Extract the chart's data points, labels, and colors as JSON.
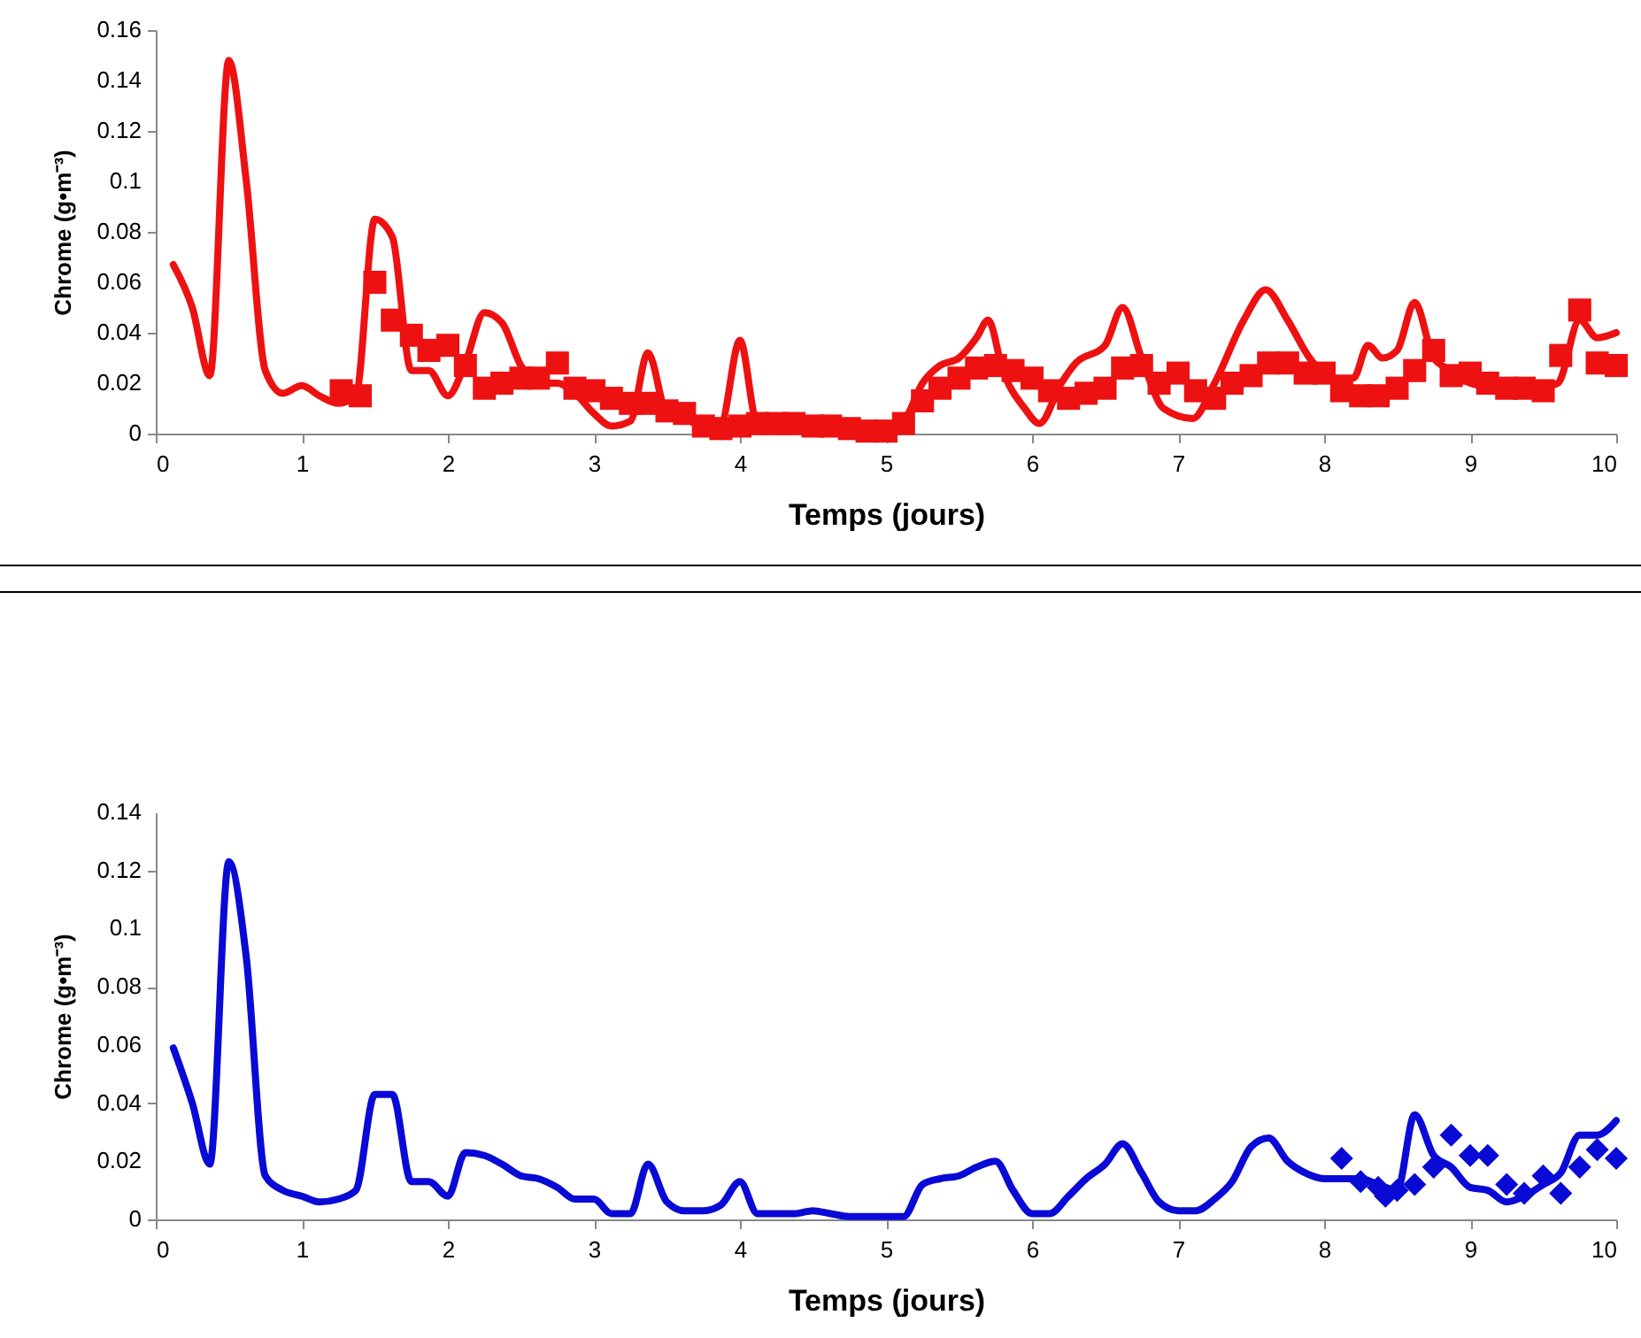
{
  "chart_data": [
    {
      "type": "line",
      "xlabel": "Temps (jours)",
      "ylabel": "Chrome (g•m⁻³)",
      "xlim": [
        0,
        10
      ],
      "xticks": [
        0,
        1,
        2,
        3,
        4,
        5,
        6,
        7,
        8,
        9,
        10
      ],
      "ylim": [
        0,
        0.16
      ],
      "yticks": [
        0,
        0.02,
        0.04,
        0.06,
        0.08,
        0.1,
        0.12,
        0.14,
        0.16
      ],
      "grid": false,
      "series": [
        {
          "type": "line",
          "color": "#ee1111",
          "x": [
            0.12,
            0.25,
            0.37,
            0.5,
            0.62,
            0.75,
            0.87,
            1.0,
            1.12,
            1.25,
            1.37,
            1.5,
            1.62,
            1.75,
            1.87,
            2.0,
            2.12,
            2.25,
            2.37,
            2.5,
            2.62,
            2.75,
            2.87,
            3.0,
            3.12,
            3.25,
            3.37,
            3.5,
            3.62,
            3.75,
            3.87,
            4.0,
            4.12,
            4.25,
            4.5,
            4.75,
            5.0,
            5.12,
            5.25,
            5.37,
            5.5,
            5.62,
            5.7,
            5.8,
            5.95,
            6.05,
            6.2,
            6.3,
            6.5,
            6.62,
            6.75,
            6.9,
            7.1,
            7.25,
            7.45,
            7.6,
            7.75,
            7.9,
            8.05,
            8.2,
            8.3,
            8.4,
            8.5,
            8.62,
            8.75,
            8.87,
            9.0,
            9.2,
            9.4,
            9.6,
            9.75,
            9.87,
            10.0
          ],
          "values": [
            0.067,
            0.05,
            0.023,
            0.148,
            0.1,
            0.025,
            0.016,
            0.019,
            0.015,
            0.012,
            0.015,
            0.085,
            0.078,
            0.025,
            0.025,
            0.015,
            0.028,
            0.048,
            0.044,
            0.027,
            0.02,
            0.02,
            0.016,
            0.008,
            0.003,
            0.005,
            0.032,
            0.008,
            0.006,
            0.003,
            0.004,
            0.037,
            0.004,
            0.004,
            0.004,
            0.003,
            0.002,
            0.005,
            0.02,
            0.027,
            0.03,
            0.038,
            0.045,
            0.025,
            0.01,
            0.004,
            0.02,
            0.028,
            0.035,
            0.05,
            0.03,
            0.01,
            0.006,
            0.02,
            0.045,
            0.057,
            0.045,
            0.03,
            0.022,
            0.022,
            0.035,
            0.03,
            0.033,
            0.052,
            0.03,
            0.025,
            0.02,
            0.018,
            0.017,
            0.02,
            0.045,
            0.038,
            0.04
          ]
        },
        {
          "type": "scatter",
          "marker": "square",
          "color": "#ee1111",
          "x": [
            1.27,
            1.4,
            1.5,
            1.62,
            1.75,
            1.87,
            2.0,
            2.12,
            2.25,
            2.37,
            2.5,
            2.62,
            2.75,
            2.87,
            3.0,
            3.12,
            3.25,
            3.37,
            3.5,
            3.62,
            3.75,
            3.87,
            4.0,
            4.12,
            4.25,
            4.37,
            4.5,
            4.62,
            4.75,
            4.87,
            5.0,
            5.12,
            5.25,
            5.37,
            5.5,
            5.62,
            5.75,
            5.87,
            6.0,
            6.12,
            6.25,
            6.37,
            6.5,
            6.62,
            6.75,
            6.87,
            7.0,
            7.12,
            7.25,
            7.37,
            7.5,
            7.62,
            7.75,
            7.87,
            8.0,
            8.12,
            8.25,
            8.37,
            8.5,
            8.62,
            8.75,
            8.87,
            9.0,
            9.12,
            9.25,
            9.37,
            9.5,
            9.62,
            9.75,
            9.87,
            10.0
          ],
          "values": [
            0.017,
            0.015,
            0.06,
            0.045,
            0.039,
            0.033,
            0.035,
            0.027,
            0.018,
            0.02,
            0.022,
            0.022,
            0.028,
            0.018,
            0.017,
            0.014,
            0.012,
            0.012,
            0.009,
            0.008,
            0.003,
            0.002,
            0.003,
            0.004,
            0.004,
            0.004,
            0.003,
            0.003,
            0.002,
            0.001,
            0.001,
            0.004,
            0.013,
            0.018,
            0.022,
            0.026,
            0.027,
            0.025,
            0.022,
            0.017,
            0.014,
            0.016,
            0.018,
            0.026,
            0.027,
            0.02,
            0.024,
            0.017,
            0.014,
            0.02,
            0.023,
            0.028,
            0.028,
            0.024,
            0.024,
            0.017,
            0.015,
            0.015,
            0.018,
            0.025,
            0.033,
            0.023,
            0.024,
            0.02,
            0.018,
            0.018,
            0.017,
            0.031,
            0.049,
            0.028,
            0.027
          ]
        }
      ]
    },
    {
      "type": "line",
      "xlabel": "Temps (jours)",
      "ylabel": "Chrome (g•m⁻³)",
      "xlim": [
        0,
        10
      ],
      "xticks": [
        0,
        1,
        2,
        3,
        4,
        5,
        6,
        7,
        8,
        9,
        10
      ],
      "ylim": [
        0,
        0.14
      ],
      "yticks": [
        0,
        0.02,
        0.04,
        0.06,
        0.08,
        0.1,
        0.12,
        0.14
      ],
      "grid": false,
      "series": [
        {
          "type": "line",
          "color": "#0a0ad6",
          "x": [
            0.12,
            0.25,
            0.37,
            0.5,
            0.62,
            0.75,
            0.87,
            1.0,
            1.12,
            1.25,
            1.37,
            1.5,
            1.62,
            1.75,
            1.87,
            2.0,
            2.12,
            2.25,
            2.37,
            2.5,
            2.62,
            2.75,
            2.87,
            3.0,
            3.12,
            3.25,
            3.37,
            3.5,
            3.62,
            3.75,
            3.87,
            4.0,
            4.12,
            4.25,
            4.37,
            4.5,
            4.62,
            4.75,
            5.0,
            5.12,
            5.25,
            5.37,
            5.5,
            5.62,
            5.75,
            5.87,
            6.0,
            6.12,
            6.25,
            6.37,
            6.5,
            6.62,
            6.75,
            6.87,
            7.0,
            7.12,
            7.25,
            7.37,
            7.5,
            7.62,
            7.75,
            7.87,
            8.0,
            8.12,
            8.25,
            8.37,
            8.5,
            8.62,
            8.75,
            8.87,
            9.0,
            9.12,
            9.25,
            9.37,
            9.5,
            9.62,
            9.75,
            9.87,
            10.0
          ],
          "values": [
            0.059,
            0.04,
            0.019,
            0.123,
            0.09,
            0.015,
            0.01,
            0.008,
            0.006,
            0.007,
            0.01,
            0.043,
            0.043,
            0.013,
            0.013,
            0.008,
            0.023,
            0.022,
            0.019,
            0.015,
            0.014,
            0.011,
            0.007,
            0.007,
            0.002,
            0.002,
            0.019,
            0.006,
            0.003,
            0.003,
            0.005,
            0.013,
            0.002,
            0.002,
            0.002,
            0.003,
            0.002,
            0.001,
            0.001,
            0.001,
            0.012,
            0.014,
            0.015,
            0.018,
            0.02,
            0.01,
            0.002,
            0.002,
            0.008,
            0.014,
            0.019,
            0.026,
            0.016,
            0.006,
            0.003,
            0.003,
            0.007,
            0.013,
            0.025,
            0.028,
            0.02,
            0.016,
            0.014,
            0.014,
            0.014,
            0.012,
            0.01,
            0.036,
            0.022,
            0.018,
            0.011,
            0.01,
            0.006,
            0.008,
            0.012,
            0.016,
            0.029,
            0.029,
            0.034
          ]
        },
        {
          "type": "scatter",
          "marker": "diamond",
          "color": "#0a0ad6",
          "x": [
            8.12,
            8.25,
            8.37,
            8.42,
            8.5,
            8.62,
            8.75,
            8.87,
            9.0,
            9.12,
            9.25,
            9.37,
            9.5,
            9.62,
            9.75,
            9.87,
            10.0
          ],
          "values": [
            0.021,
            0.013,
            0.011,
            0.008,
            0.01,
            0.012,
            0.018,
            0.029,
            0.022,
            0.022,
            0.012,
            0.009,
            0.015,
            0.009,
            0.018,
            0.024,
            0.021
          ]
        }
      ]
    }
  ]
}
